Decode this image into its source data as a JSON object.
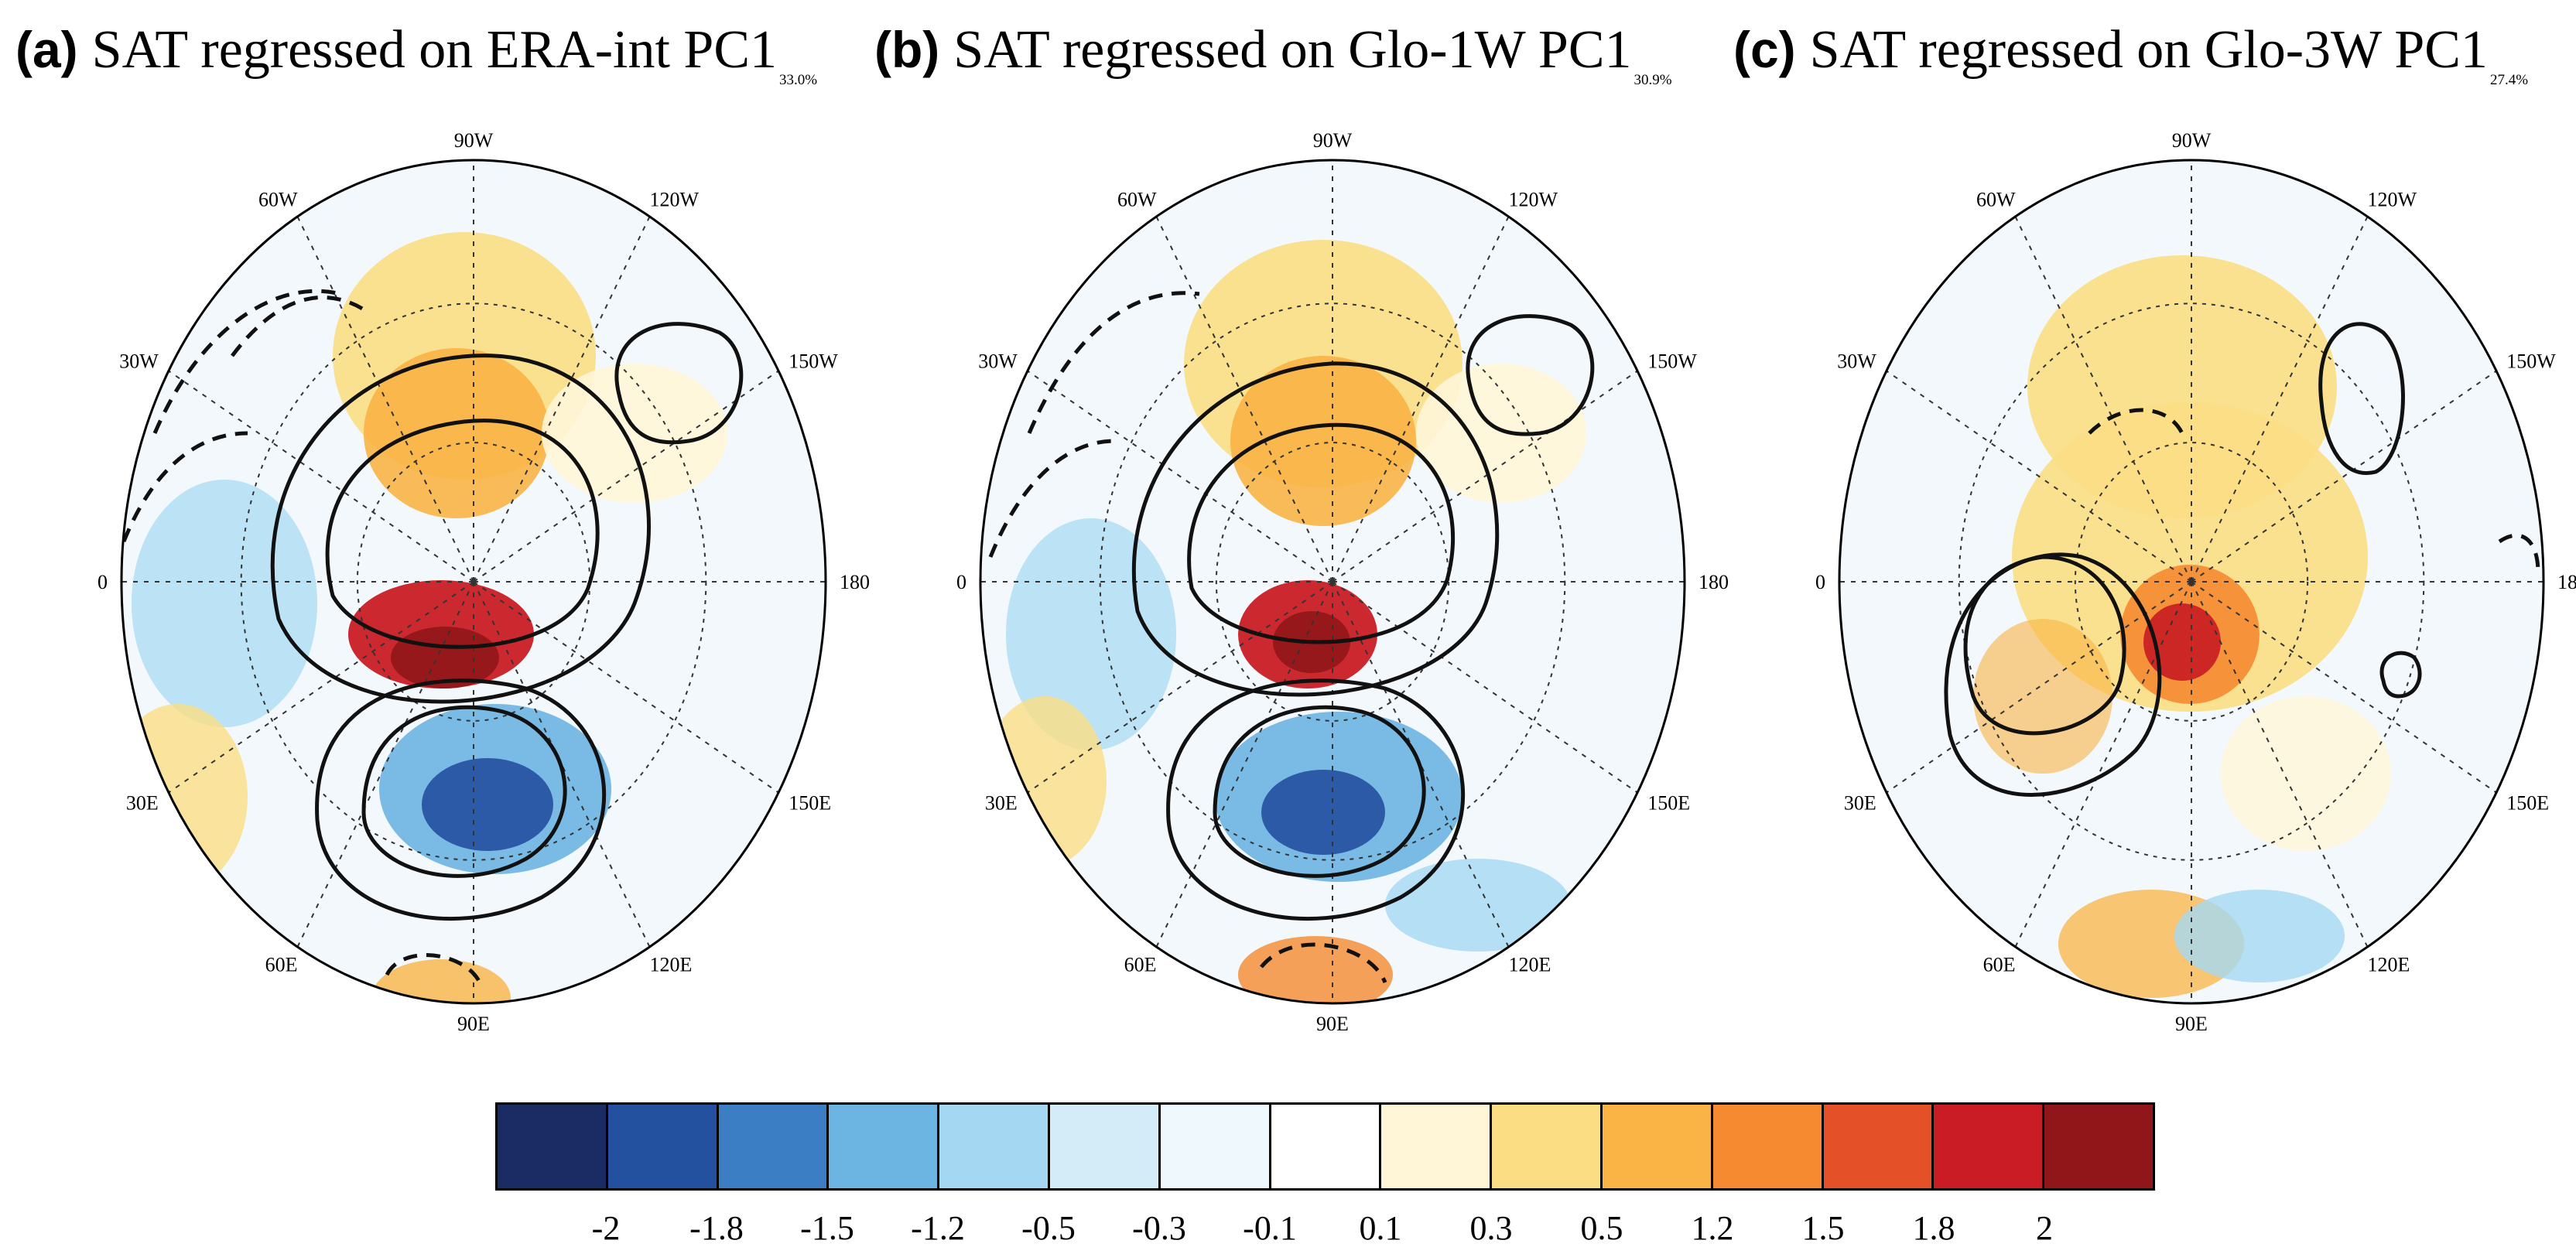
{
  "panels": [
    {
      "label": "(a)",
      "title": "SAT regressed on ERA-int PC1",
      "variance": "33.0%"
    },
    {
      "label": "(b)",
      "title": "SAT regressed on Glo-1W PC1",
      "variance": "30.9%"
    },
    {
      "label": "(c)",
      "title": "SAT regressed on Glo-3W PC1",
      "variance": "27.4%"
    }
  ],
  "lon_labels": [
    "90W",
    "120W",
    "150W",
    "180",
    "150E",
    "120E",
    "90E",
    "60E",
    "30E",
    "0",
    "30W",
    "60W"
  ],
  "colorbar": {
    "colors": [
      "#1b2b64",
      "#2450a0",
      "#3b7ec4",
      "#6cb4e2",
      "#a4d8f2",
      "#d3ecf7",
      "#eef8fd",
      "#ffffff",
      "#fff6d8",
      "#fbde84",
      "#f9b445",
      "#f58a30",
      "#e45128",
      "#c91c24",
      "#90161a"
    ],
    "ticks": [
      "-2",
      "-1.8",
      "-1.5",
      "-1.2",
      "-0.5",
      "-0.3",
      "-0.1",
      "0.1",
      "0.3",
      "0.5",
      "1.2",
      "1.5",
      "1.8",
      "2"
    ]
  }
}
